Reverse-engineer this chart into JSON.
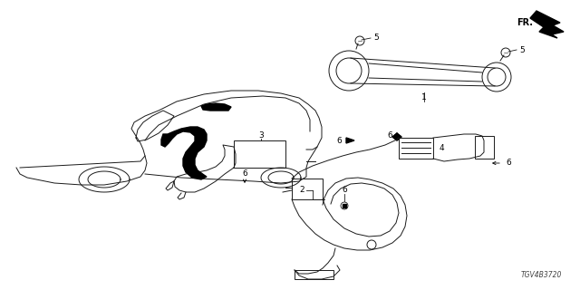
{
  "bg_color": "#ffffff",
  "part_number": "TGV4B3720",
  "line_color": "#1a1a1a",
  "lw": 0.7,
  "figsize": [
    6.4,
    3.2
  ],
  "dpi": 100
}
